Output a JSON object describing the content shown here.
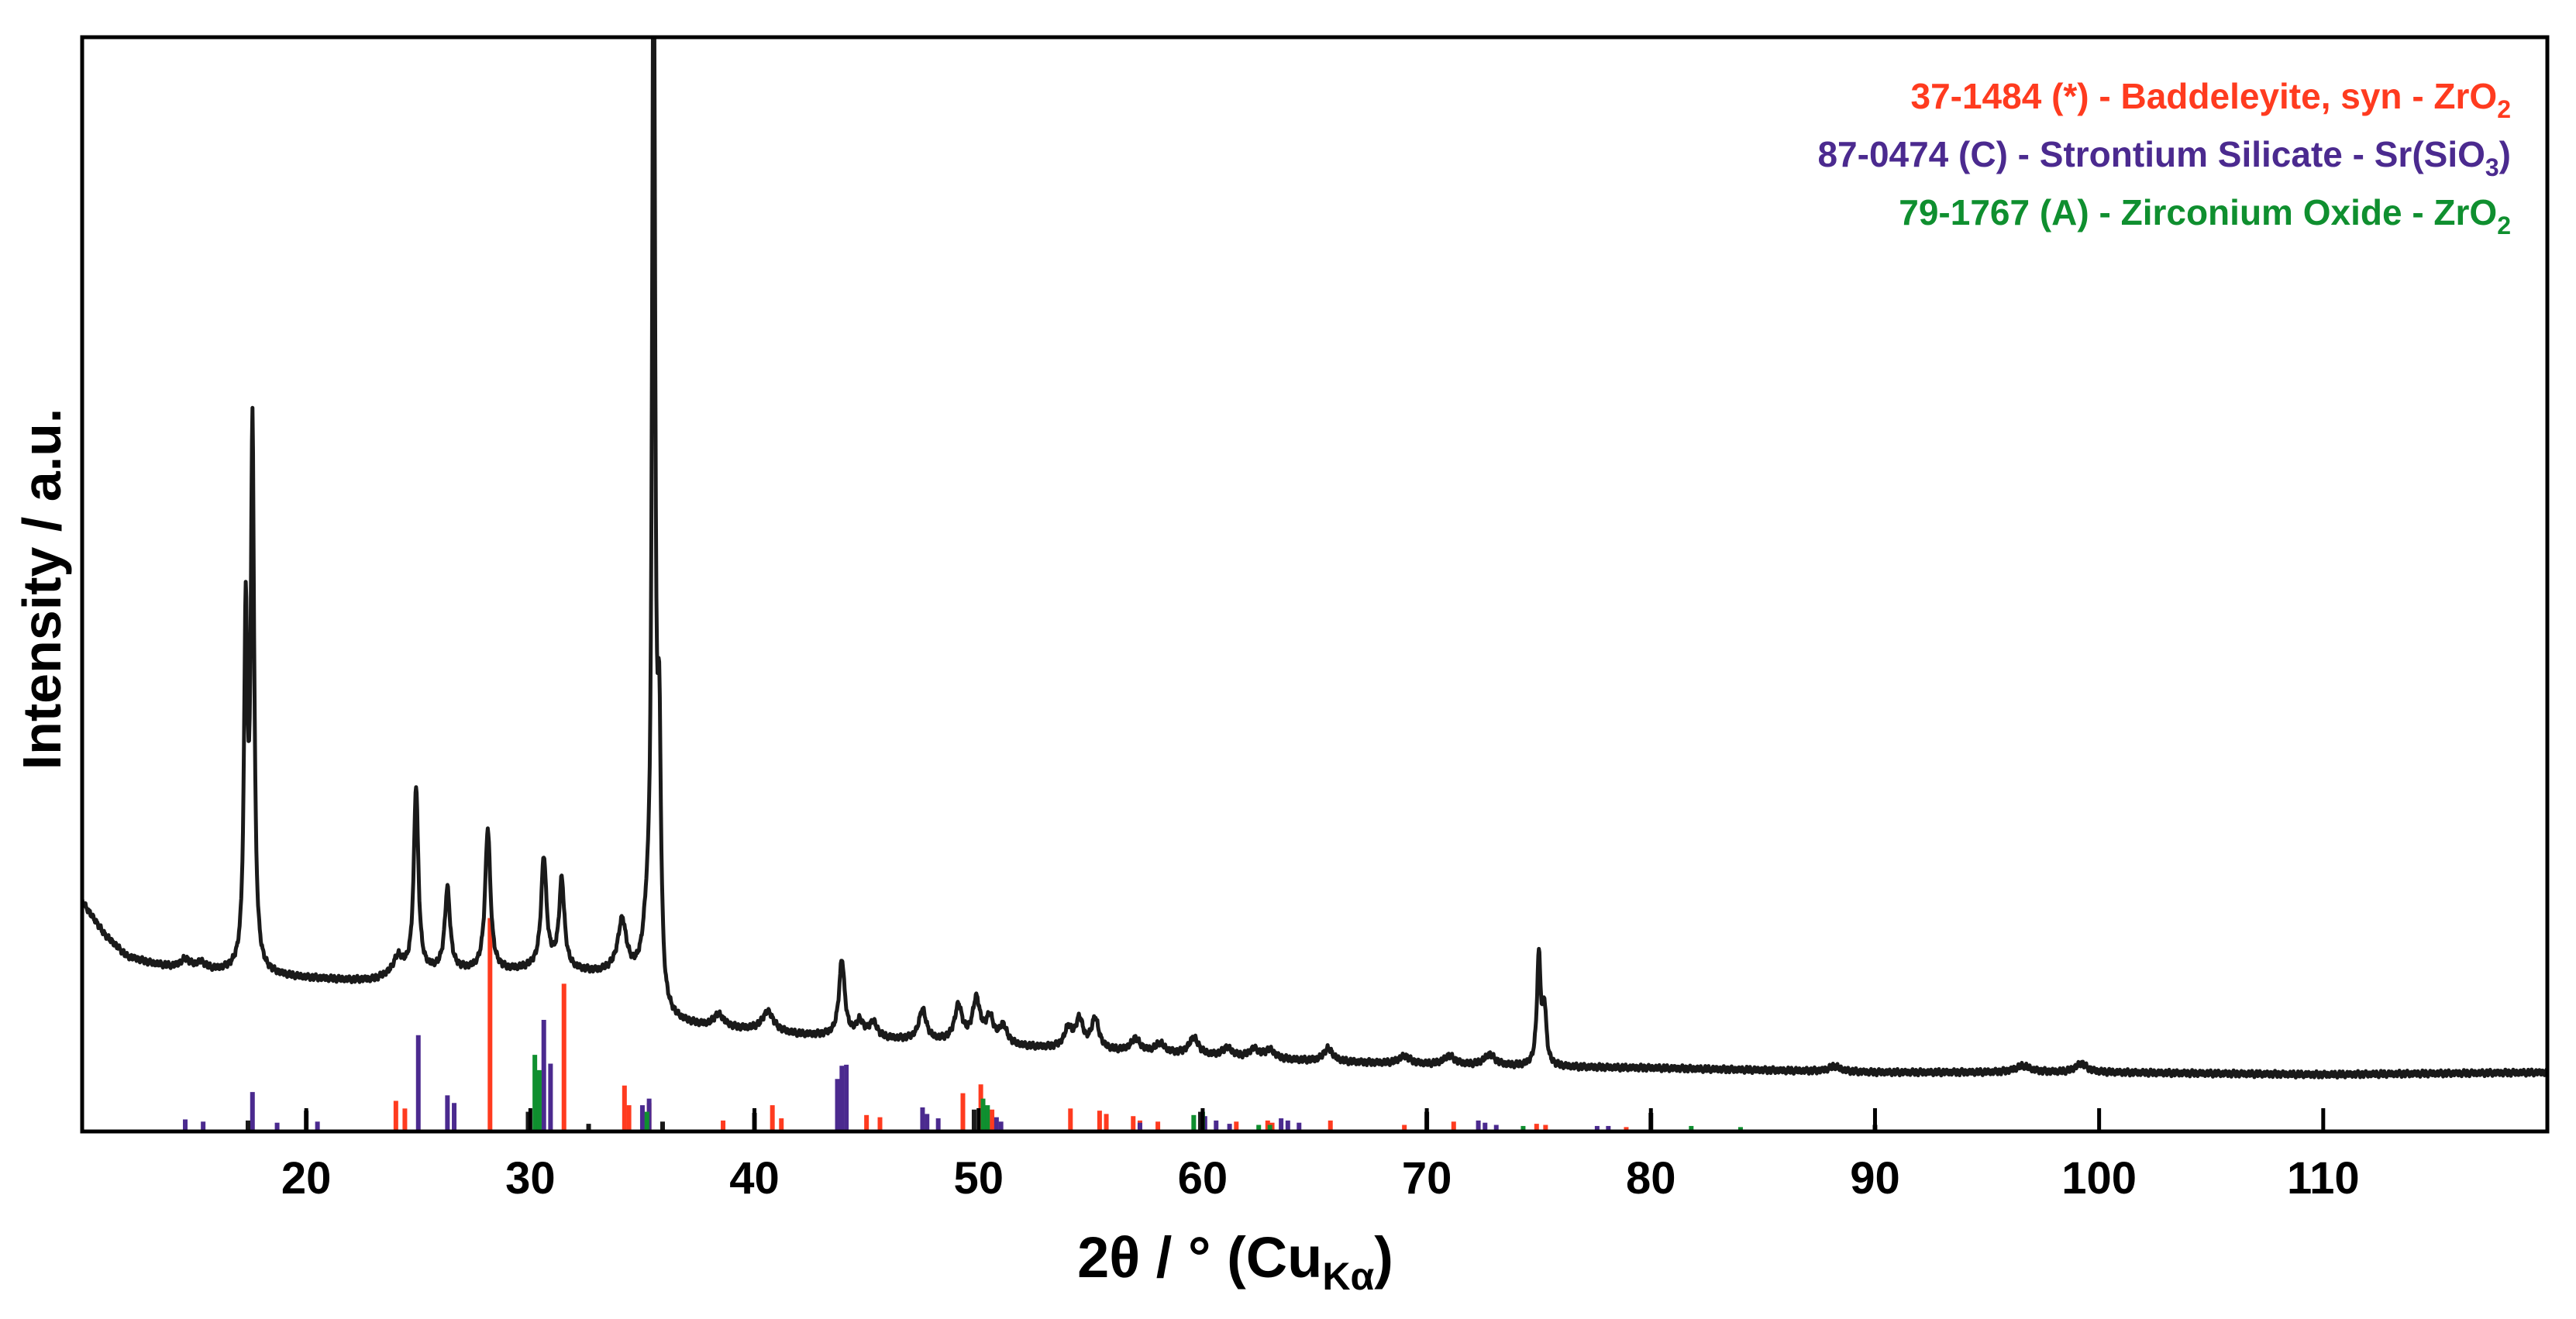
{
  "chart_data": {
    "type": "line",
    "xlim": [
      10,
      120
    ],
    "x_ticks": [
      20,
      30,
      40,
      50,
      60,
      70,
      80,
      90,
      100,
      110
    ],
    "x_tick_labels": [
      "20",
      "30",
      "40",
      "50",
      "60",
      "70",
      "80",
      "90",
      "100",
      "110"
    ],
    "y_ticks_shown": false,
    "ylim": [
      0,
      100
    ],
    "grid": false,
    "legend_placement": "top-right",
    "xlabel": {
      "main": "2θ / ° (Cu",
      "sub": "Kα",
      "close": ")"
    },
    "ylabel": "Intensity / a.u.",
    "colors": {
      "pattern": "#1a1a1a",
      "baddeleyite": "#ff3b1f",
      "strontium_silicate": "#4b2a8f",
      "zirconium_oxide": "#0f8f2f",
      "other": "#1a1a1a"
    },
    "legend": [
      {
        "text": "37-1484 (*) - Baddeleyite, syn - ZrO",
        "sub": "2",
        "after": "",
        "color": "#ff3b1f"
      },
      {
        "text": "87-0474 (C) - Strontium Silicate - Sr(SiO",
        "sub": "3",
        "after": ")",
        "color": "#4b2a8f"
      },
      {
        "text": "79-1767 (A) - Zirconium Oxide - ZrO",
        "sub": "2",
        "after": "",
        "color": "#0f8f2f"
      }
    ],
    "series": [
      {
        "name": "",
        "color": "#1a1a1a",
        "baseline": [
          [
            10,
            21
          ],
          [
            11,
            18
          ],
          [
            12,
            16
          ],
          [
            13,
            15.4
          ],
          [
            14,
            15
          ],
          [
            16,
            14.6
          ],
          [
            17,
            14.5
          ],
          [
            18,
            14.3
          ],
          [
            20,
            14
          ],
          [
            22,
            13.8
          ],
          [
            23,
            13.8
          ],
          [
            24,
            14.3
          ],
          [
            26,
            14.6
          ],
          [
            27,
            14.6
          ],
          [
            29,
            14.6
          ],
          [
            30,
            14.8
          ],
          [
            31,
            15
          ],
          [
            32,
            14.6
          ],
          [
            33,
            14.4
          ],
          [
            34,
            14.6
          ],
          [
            35,
            13.5
          ],
          [
            36,
            10
          ],
          [
            38,
            9.4
          ],
          [
            40,
            9.2
          ],
          [
            42,
            8.8
          ],
          [
            44,
            8.6
          ],
          [
            46,
            8.4
          ],
          [
            48,
            8.2
          ],
          [
            50,
            8.1
          ],
          [
            52,
            7.7
          ],
          [
            55,
            7.4
          ],
          [
            58,
            7.1
          ],
          [
            60,
            6.9
          ],
          [
            65,
            6.4
          ],
          [
            70,
            6.1
          ],
          [
            75,
            5.9
          ],
          [
            80,
            5.8
          ],
          [
            85,
            5.6
          ],
          [
            90,
            5.4
          ],
          [
            100,
            5.4
          ],
          [
            110,
            5.2
          ],
          [
            120,
            5.4
          ]
        ],
        "peaks": [
          [
            14.6,
            0.8,
            0.25
          ],
          [
            15.3,
            0.6,
            0.25
          ],
          [
            17.3,
            32,
            0.09
          ],
          [
            17.6,
            49,
            0.09
          ],
          [
            24.1,
            1.5,
            0.25
          ],
          [
            24.9,
            17,
            0.12
          ],
          [
            26.3,
            7.5,
            0.14
          ],
          [
            28.1,
            13,
            0.14
          ],
          [
            30.6,
            10,
            0.14
          ],
          [
            31.4,
            8,
            0.14
          ],
          [
            34.1,
            4.5,
            0.22
          ],
          [
            35.2,
            4,
            0.2
          ],
          [
            35.5,
            100,
            0.08
          ],
          [
            35.75,
            22,
            0.09
          ],
          [
            38.4,
            1.2,
            0.3
          ],
          [
            40.6,
            1.8,
            0.3
          ],
          [
            43.9,
            7,
            0.15
          ],
          [
            44.7,
            1.4,
            0.2
          ],
          [
            45.3,
            1.4,
            0.2
          ],
          [
            47.5,
            2.8,
            0.2
          ],
          [
            49.1,
            3.2,
            0.2
          ],
          [
            49.9,
            3.8,
            0.2
          ],
          [
            50.5,
            2.2,
            0.2
          ],
          [
            51.1,
            1.6,
            0.2
          ],
          [
            54.0,
            1.8,
            0.2
          ],
          [
            54.5,
            2.6,
            0.2
          ],
          [
            55.2,
            2.8,
            0.2
          ],
          [
            57.0,
            1.2,
            0.25
          ],
          [
            58.1,
            0.9,
            0.25
          ],
          [
            59.6,
            1.6,
            0.25
          ],
          [
            61.1,
            0.8,
            0.25
          ],
          [
            62.3,
            0.8,
            0.25
          ],
          [
            63.0,
            0.8,
            0.25
          ],
          [
            65.6,
            1.2,
            0.25
          ],
          [
            69.0,
            0.7,
            0.3
          ],
          [
            71.0,
            0.8,
            0.3
          ],
          [
            72.8,
            1.0,
            0.3
          ],
          [
            75.0,
            10,
            0.1
          ],
          [
            75.25,
            5,
            0.1
          ],
          [
            88.2,
            0.5,
            0.3
          ],
          [
            96.6,
            0.6,
            0.4
          ],
          [
            99.2,
            0.8,
            0.3
          ]
        ]
      }
    ],
    "reference_lines": {
      "baddeleyite": [
        [
          24.0,
          2.8
        ],
        [
          24.4,
          2.1
        ],
        [
          28.2,
          19.5
        ],
        [
          31.5,
          13.5
        ],
        [
          34.2,
          4.2
        ],
        [
          34.4,
          2.4
        ],
        [
          35.3,
          2.6
        ],
        [
          38.6,
          1.0
        ],
        [
          40.8,
          2.4
        ],
        [
          41.2,
          1.2
        ],
        [
          45.0,
          1.5
        ],
        [
          45.6,
          1.3
        ],
        [
          49.3,
          3.5
        ],
        [
          50.1,
          4.3
        ],
        [
          50.6,
          2.0
        ],
        [
          54.1,
          2.1
        ],
        [
          55.4,
          1.9
        ],
        [
          55.7,
          1.6
        ],
        [
          56.9,
          1.4
        ],
        [
          57.2,
          1.0
        ],
        [
          58.0,
          0.9
        ],
        [
          61.5,
          0.9
        ],
        [
          62.9,
          1.0
        ],
        [
          63.1,
          0.8
        ],
        [
          65.7,
          1.0
        ],
        [
          69.0,
          0.6
        ],
        [
          71.2,
          0.9
        ],
        [
          74.9,
          0.7
        ],
        [
          75.3,
          0.6
        ],
        [
          78.9,
          0.4
        ]
      ],
      "strontium_silicate": [
        [
          14.6,
          1.1
        ],
        [
          15.4,
          0.9
        ],
        [
          17.6,
          3.6
        ],
        [
          18.7,
          0.8
        ],
        [
          20.5,
          0.9
        ],
        [
          25.0,
          8.8
        ],
        [
          26.3,
          3.3
        ],
        [
          26.6,
          2.6
        ],
        [
          30.6,
          10.2
        ],
        [
          30.9,
          6.2
        ],
        [
          35.0,
          2.4
        ],
        [
          35.3,
          3.0
        ],
        [
          43.7,
          4.8
        ],
        [
          43.9,
          6.0
        ],
        [
          44.1,
          6.1
        ],
        [
          47.5,
          2.2
        ],
        [
          47.7,
          1.6
        ],
        [
          48.2,
          1.2
        ],
        [
          50.8,
          1.3
        ],
        [
          51.0,
          0.9
        ],
        [
          57.2,
          0.8
        ],
        [
          60.1,
          1.4
        ],
        [
          60.6,
          1.0
        ],
        [
          61.2,
          0.7
        ],
        [
          63.5,
          1.2
        ],
        [
          63.8,
          1.0
        ],
        [
          64.3,
          0.8
        ],
        [
          72.3,
          1.0
        ],
        [
          72.6,
          0.8
        ],
        [
          73.1,
          0.6
        ],
        [
          77.6,
          0.5
        ],
        [
          78.1,
          0.5
        ]
      ],
      "zirconium_oxide": [
        [
          30.2,
          7.0
        ],
        [
          30.4,
          5.6
        ],
        [
          35.2,
          1.8
        ],
        [
          50.2,
          3.0
        ],
        [
          50.4,
          2.4
        ],
        [
          59.6,
          1.5
        ],
        [
          60.0,
          1.8
        ],
        [
          62.5,
          0.6
        ],
        [
          63.0,
          0.6
        ],
        [
          74.3,
          0.5
        ],
        [
          81.8,
          0.5
        ],
        [
          84.0,
          0.4
        ]
      ],
      "other": [
        [
          17.4,
          1.0
        ],
        [
          20.0,
          1.9
        ],
        [
          29.9,
          1.8
        ],
        [
          32.6,
          0.7
        ],
        [
          35.9,
          0.9
        ],
        [
          40.0,
          1.7
        ],
        [
          49.8,
          2.0
        ],
        [
          59.9,
          1.8
        ],
        [
          70.0,
          1.8
        ],
        [
          80.0,
          1.7
        ],
        [
          90.0,
          0.6
        ]
      ]
    }
  }
}
